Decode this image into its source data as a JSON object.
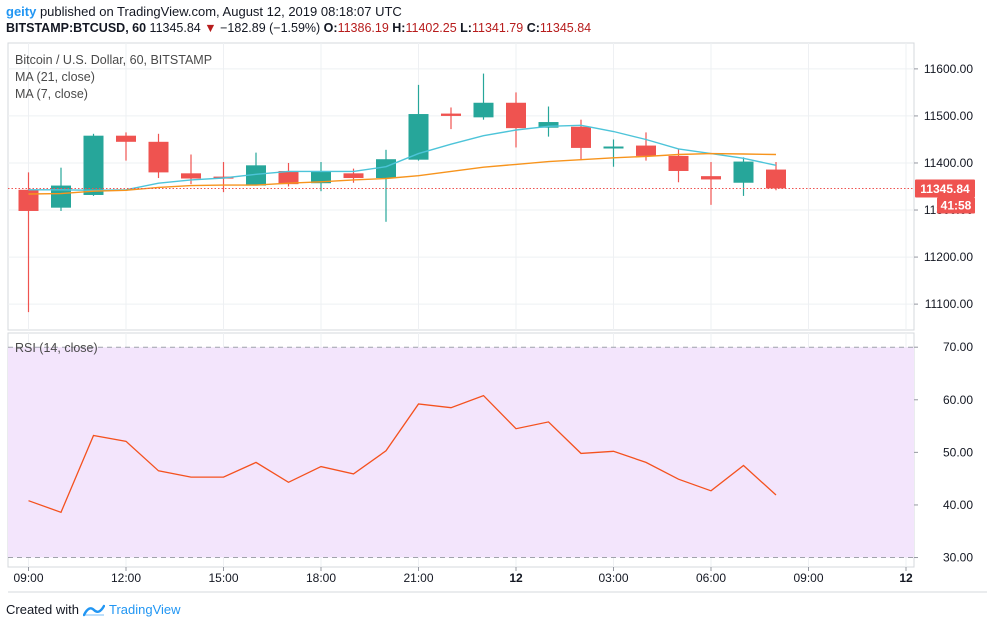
{
  "header": {
    "user": "geity",
    "published_text": " published on TradingView.com, August 12, 2019 08:18:07 UTC",
    "symbol": "BITSTAMP:BTCUSD, 60",
    "last": "11345.84",
    "down_arrow": "▼",
    "change": "−182.89 (−1.59%)",
    "o_label": "O:",
    "o_value": "11386.19",
    "h_label": "H:",
    "h_value": "11402.25",
    "l_label": "L:",
    "l_value": "11341.79",
    "c_label": "C:",
    "c_value": "11345.84"
  },
  "legend": {
    "title": "Bitcoin / U.S. Dollar, 60, BITSTAMP",
    "ma21": "MA (21, close)",
    "ma7": "MA (7, close)",
    "rsi": "RSI (14, close)"
  },
  "price_badges": {
    "last": "11345.84",
    "countdown": "41:58"
  },
  "colors": {
    "up": "#26a69a",
    "down": "#ef5350",
    "ma21": "#4dc4d9",
    "ma7": "#f7941d",
    "rsi": "#f4511e",
    "rsi_band": "#f3e5fc",
    "last_price_line": "#ef5350"
  },
  "chart_data": [
    {
      "type": "candlestick",
      "title": "Bitcoin / U.S. Dollar, 60, BITSTAMP",
      "x_ticks": [
        "09:00",
        "12:00",
        "15:00",
        "18:00",
        "21:00",
        "12",
        "03:00",
        "06:00",
        "09:00",
        "12"
      ],
      "y_ticks": [
        "11100.00",
        "11200.00",
        "11300.00",
        "11400.00",
        "11500.00",
        "11600.00"
      ],
      "ylim": [
        11045,
        11655
      ],
      "candles": [
        {
          "o": 11343,
          "h": 11380,
          "l": 11083,
          "c": 11298
        },
        {
          "o": 11305,
          "h": 11390,
          "l": 11298,
          "c": 11352
        },
        {
          "o": 11332,
          "h": 11462,
          "l": 11330,
          "c": 11458
        },
        {
          "o": 11458,
          "h": 11465,
          "l": 11405,
          "c": 11445
        },
        {
          "o": 11445,
          "h": 11462,
          "l": 11368,
          "c": 11380
        },
        {
          "o": 11378,
          "h": 11418,
          "l": 11355,
          "c": 11367
        },
        {
          "o": 11371,
          "h": 11402,
          "l": 11338,
          "c": 11370
        },
        {
          "o": 11352,
          "h": 11422,
          "l": 11352,
          "c": 11395
        },
        {
          "o": 11383,
          "h": 11400,
          "l": 11350,
          "c": 11355
        },
        {
          "o": 11357,
          "h": 11402,
          "l": 11340,
          "c": 11383
        },
        {
          "o": 11378,
          "h": 11388,
          "l": 11358,
          "c": 11368
        },
        {
          "o": 11368,
          "h": 11428,
          "l": 11275,
          "c": 11408
        },
        {
          "o": 11407,
          "h": 11566,
          "l": 11405,
          "c": 11504
        },
        {
          "o": 11505,
          "h": 11518,
          "l": 11472,
          "c": 11500
        },
        {
          "o": 11497,
          "h": 11590,
          "l": 11492,
          "c": 11528
        },
        {
          "o": 11528,
          "h": 11550,
          "l": 11433,
          "c": 11474
        },
        {
          "o": 11475,
          "h": 11520,
          "l": 11456,
          "c": 11487
        },
        {
          "o": 11477,
          "h": 11492,
          "l": 11406,
          "c": 11432
        },
        {
          "o": 11432,
          "h": 11450,
          "l": 11392,
          "c": 11435
        },
        {
          "o": 11437,
          "h": 11465,
          "l": 11405,
          "c": 11415
        },
        {
          "o": 11415,
          "h": 11430,
          "l": 11359,
          "c": 11383
        },
        {
          "o": 11372,
          "h": 11402,
          "l": 11311,
          "c": 11365
        },
        {
          "o": 11358,
          "h": 11412,
          "l": 11330,
          "c": 11403
        },
        {
          "o": 11386,
          "h": 11402,
          "l": 11342,
          "c": 11346
        }
      ],
      "series": [
        {
          "name": "MA (21, close)",
          "values": [
            11343,
            11343,
            11342,
            11343,
            11357,
            11364,
            11368,
            11376,
            11382,
            11382,
            11382,
            11392,
            11420,
            11440,
            11458,
            11470,
            11478,
            11480,
            11467,
            11450,
            11430,
            11420,
            11410,
            11395
          ]
        },
        {
          "name": "MA (7, close)",
          "values": [
            11334,
            11335,
            11340,
            11342,
            11348,
            11352,
            11353,
            11353,
            11357,
            11360,
            11364,
            11367,
            11373,
            11382,
            11391,
            11397,
            11403,
            11407,
            11411,
            11414,
            11418,
            11420,
            11419,
            11418
          ]
        }
      ]
    },
    {
      "type": "line",
      "title": "RSI (14, close)",
      "y_ticks": [
        "30.00",
        "40.00",
        "50.00",
        "60.00",
        "70.00"
      ],
      "ylim": [
        28.2,
        72.7
      ],
      "band": [
        30,
        70
      ],
      "series": [
        {
          "name": "RSI (14, close)",
          "values": [
            40.8,
            38.6,
            53.2,
            52.1,
            46.5,
            45.3,
            45.3,
            48.1,
            44.3,
            47.3,
            45.9,
            50.3,
            59.2,
            58.5,
            60.8,
            54.5,
            55.8,
            49.8,
            50.2,
            48.1,
            44.9,
            42.7,
            47.5,
            41.9
          ]
        }
      ]
    }
  ],
  "footer": {
    "created_with": "Created with",
    "brand": "TradingView"
  }
}
